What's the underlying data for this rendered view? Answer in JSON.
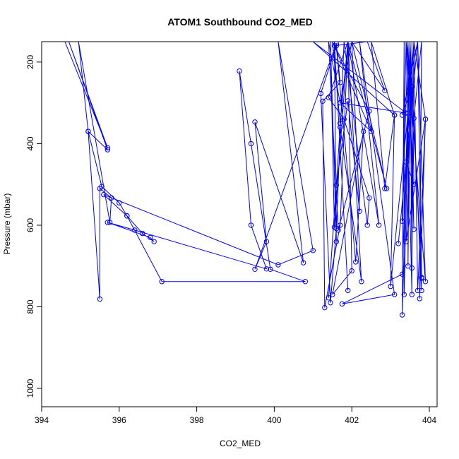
{
  "chart_data": {
    "type": "line+scatter",
    "title": "ATOM1 Southbound CO2_MED",
    "xlabel": "CO2_MED",
    "ylabel": "Pressure (mbar)",
    "xlim": [
      394,
      404.2
    ],
    "ylim": [
      1045,
      150
    ],
    "y_reversed": true,
    "grid": false,
    "legend": "none",
    "xticks": [
      "394",
      "396",
      "398",
      "400",
      "402",
      "404"
    ],
    "xtick_values": [
      394,
      396,
      398,
      400,
      402,
      404
    ],
    "yticks": [
      "200",
      "400",
      "600",
      "800",
      "1000"
    ],
    "ytick_values": [
      200,
      400,
      600,
      800,
      1000
    ],
    "series": [
      {
        "color": "#0000ff",
        "points": [
          [
            394.6,
            150
          ],
          [
            395.7,
            410
          ],
          [
            394.7,
            150
          ],
          [
            395.7,
            415
          ],
          [
            395.2,
            370
          ],
          [
            395.5,
            781
          ],
          [
            395.5,
            510
          ],
          [
            395.8,
            533
          ],
          [
            395.76,
            593
          ],
          [
            394.95,
            150
          ],
          [
            395.2,
            370
          ],
          [
            395.55,
            505
          ],
          [
            396.0,
            545
          ],
          [
            396.2,
            577
          ],
          [
            396.6,
            620
          ],
          [
            396.9,
            640
          ],
          [
            396.8,
            630
          ],
          [
            395.7,
            593
          ],
          [
            396.4,
            612
          ],
          [
            399.8,
            707
          ],
          [
            399.4,
            600
          ],
          [
            399.1,
            222
          ],
          [
            399.4,
            400
          ],
          [
            399.9,
            708
          ],
          [
            400.8,
            738
          ],
          [
            397.1,
            738
          ],
          [
            396.2,
            577
          ],
          [
            395.6,
            525
          ],
          [
            400.1,
            697
          ],
          [
            401.0,
            662
          ],
          [
            400.1,
            150
          ],
          [
            400.75,
            692
          ],
          [
            399.5,
            347
          ],
          [
            399.8,
            640
          ],
          [
            399.5,
            708
          ],
          [
            401.6,
            155
          ],
          [
            401.7,
            250
          ],
          [
            401.25,
            296
          ],
          [
            401.3,
            802
          ],
          [
            401.7,
            600
          ],
          [
            401.9,
            150
          ],
          [
            402.0,
            712
          ],
          [
            401.5,
            770
          ],
          [
            402.3,
            370
          ],
          [
            402.1,
            690
          ],
          [
            401.6,
            160
          ],
          [
            401.2,
            277
          ],
          [
            401.45,
            790
          ],
          [
            401.6,
            608
          ],
          [
            401.8,
            150
          ],
          [
            402.4,
            600
          ],
          [
            402.45,
            533
          ],
          [
            401.8,
            340
          ],
          [
            401.4,
            287
          ],
          [
            401.9,
            150
          ],
          [
            402.25,
            738
          ],
          [
            401.7,
            360
          ],
          [
            401.4,
            778
          ],
          [
            401.6,
            502
          ],
          [
            401.9,
            295
          ],
          [
            402.2,
            566
          ],
          [
            402.0,
            150
          ],
          [
            402.9,
            510
          ],
          [
            401.9,
            150
          ],
          [
            402.7,
            600
          ],
          [
            402.2,
            150
          ],
          [
            403.1,
            770
          ],
          [
            401.75,
            793
          ],
          [
            403.3,
            720
          ],
          [
            403.5,
            150
          ],
          [
            403.35,
            770
          ],
          [
            403.35,
            150
          ],
          [
            403.3,
            820
          ],
          [
            403.5,
            150
          ],
          [
            403.55,
            705
          ],
          [
            403.6,
            150
          ],
          [
            403.7,
            760
          ],
          [
            403.9,
            340
          ],
          [
            403.75,
            780
          ],
          [
            403.8,
            150
          ],
          [
            403.6,
            338
          ],
          [
            403.8,
            760
          ],
          [
            403.7,
            150
          ],
          [
            403.9,
            738
          ],
          [
            403.4,
            150
          ],
          [
            403.55,
            260
          ],
          [
            403.8,
            728
          ],
          [
            403.5,
            150
          ],
          [
            403.6,
            610
          ],
          [
            403.45,
            150
          ],
          [
            403.3,
            590
          ],
          [
            403.4,
            150
          ],
          [
            403.55,
            770
          ],
          [
            403.55,
            150
          ],
          [
            403.6,
            500
          ],
          [
            403.4,
            445
          ],
          [
            403.6,
            150
          ],
          [
            403.9,
            340
          ],
          [
            403.4,
            640
          ],
          [
            403.55,
            260
          ],
          [
            403.3,
            330
          ],
          [
            403.7,
            150
          ],
          [
            403.2,
            645
          ],
          [
            403.7,
            150
          ],
          [
            403.8,
            730
          ],
          [
            403.5,
            150
          ],
          [
            403.45,
            700
          ],
          [
            403.45,
            150
          ],
          [
            403.45,
            325
          ],
          [
            403.0,
            750
          ],
          [
            403.1,
            330
          ],
          [
            402.85,
            510
          ],
          [
            402.5,
            150
          ],
          [
            403.1,
            330
          ],
          [
            401.0,
            150
          ],
          [
            403.4,
            325
          ],
          [
            401.7,
            300
          ],
          [
            402.0,
            150
          ],
          [
            402.85,
            270
          ],
          [
            402.4,
            150
          ],
          [
            401.55,
            160
          ],
          [
            402.45,
            320
          ],
          [
            401.65,
            612
          ],
          [
            401.4,
            150
          ],
          [
            401.7,
            300
          ],
          [
            402.5,
            370
          ],
          [
            401.5,
            150
          ],
          [
            401.7,
            350
          ],
          [
            401.9,
            150
          ],
          [
            401.55,
            605
          ],
          [
            401.45,
            150
          ],
          [
            401.6,
            640
          ],
          [
            401.55,
            150
          ],
          [
            401.9,
            760
          ]
        ]
      }
    ]
  }
}
